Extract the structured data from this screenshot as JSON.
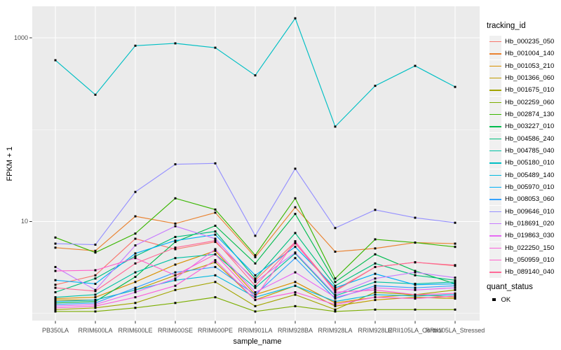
{
  "figure": {
    "background": "#FFFFFF",
    "panel_background": "#EBEBEB",
    "gridline_color": "#FFFFFF",
    "tick_label_color": "#4D4D4D",
    "marker_color": "#000000"
  },
  "chart_data": {
    "type": "line",
    "title": "",
    "xlabel": "sample_name",
    "ylabel": "FPKM + 1",
    "y_scale": "log10",
    "grid": "on",
    "legend_position": "right",
    "legend_title": "tracking_id",
    "y_ticks": [
      {
        "label": "1000",
        "value": 1000
      },
      {
        "label": "10",
        "value": 10
      }
    ],
    "y_minor_gridline_values": [
      1,
      100
    ],
    "ylim": [
      0.84,
      2160
    ],
    "categories": [
      "PB350LA",
      "RRIM600LA",
      "RRIM600LE",
      "RRIM600SE",
      "RRIM600PE",
      "RRIM901LA",
      "RRIM928BA",
      "RRIM928LA",
      "RRIM928LE",
      "RRII105LA_Control",
      "RRII105LA_Stressed"
    ],
    "point_marker": "black-square",
    "series": [
      {
        "name": "Hb_000235_050",
        "color": "#F8766D",
        "values": [
          2.05,
          2.6,
          6.5,
          5.0,
          6.0,
          2.3,
          6.0,
          1.8,
          3.2,
          3.6,
          3.3
        ]
      },
      {
        "name": "Hb_001004_140",
        "color": "#EA8331",
        "values": [
          5.2,
          4.8,
          11.4,
          9.5,
          12.5,
          4.1,
          14.3,
          4.7,
          5.1,
          5.9,
          5.75
        ]
      },
      {
        "name": "Hb_001053_210",
        "color": "#D89000",
        "values": [
          1.45,
          1.5,
          2.2,
          3.4,
          4.8,
          1.6,
          2.2,
          1.3,
          1.5,
          1.6,
          1.5
        ]
      },
      {
        "name": "Hb_001366_060",
        "color": "#C09B00",
        "values": [
          1.4,
          1.4,
          1.8,
          2.6,
          3.6,
          1.4,
          2.0,
          1.2,
          1.4,
          1.5,
          1.45
        ]
      },
      {
        "name": "Hb_001675_010",
        "color": "#A3A500",
        "values": [
          1.1,
          1.15,
          1.3,
          1.8,
          2.2,
          1.2,
          1.6,
          1.1,
          1.7,
          1.6,
          1.8
        ]
      },
      {
        "name": "Hb_002259_060",
        "color": "#7CAE00",
        "values": [
          1.05,
          1.05,
          1.15,
          1.3,
          1.5,
          1.05,
          1.2,
          1.05,
          1.1,
          1.1,
          1.1
        ]
      },
      {
        "name": "Hb_002874_130",
        "color": "#39B600",
        "values": [
          6.7,
          4.6,
          7.4,
          17.9,
          13.5,
          4.3,
          17.9,
          2.4,
          6.4,
          5.9,
          5.3
        ]
      },
      {
        "name": "Hb_003227_010",
        "color": "#00BB4E",
        "values": [
          1.3,
          1.35,
          2.5,
          6.0,
          9.0,
          3.5,
          12.1,
          2.2,
          4.4,
          2.9,
          2.1
        ]
      },
      {
        "name": "Hb_004586_240",
        "color": "#00BF7D",
        "values": [
          1.7,
          2.4,
          4.2,
          6.8,
          7.8,
          2.4,
          7.5,
          2.0,
          3.5,
          2.6,
          2.3
        ]
      },
      {
        "name": "Hb_004785_040",
        "color": "#00C1A3",
        "values": [
          1.5,
          1.6,
          2.8,
          4.0,
          4.4,
          1.9,
          4.5,
          1.55,
          2.2,
          2.1,
          2.2
        ]
      },
      {
        "name": "Hb_005180_010",
        "color": "#00BFC4",
        "values": [
          570,
          240,
          820,
          870,
          780,
          390,
          1630,
          108,
          300,
          495,
          292
        ]
      },
      {
        "name": "Hb_005489_140",
        "color": "#00BAE0",
        "values": [
          1.35,
          1.4,
          1.8,
          2.3,
          2.6,
          1.5,
          2.0,
          1.35,
          1.6,
          1.55,
          1.6
        ]
      },
      {
        "name": "Hb_005970_010",
        "color": "#00B0F6",
        "values": [
          2.3,
          2.1,
          4.5,
          6.2,
          7.2,
          2.6,
          5.3,
          1.9,
          2.7,
          2.05,
          2.1
        ]
      },
      {
        "name": "Hb_008053_060",
        "color": "#35A2FF",
        "values": [
          1.25,
          1.3,
          1.9,
          2.8,
          3.2,
          1.6,
          4.0,
          1.45,
          2.0,
          1.9,
          2.0
        ]
      },
      {
        "name": "Hb_009646_010",
        "color": "#9590FF",
        "values": [
          5.75,
          5.6,
          21.0,
          42.0,
          43.0,
          7.0,
          37.6,
          8.5,
          13.4,
          11.0,
          9.7
        ]
      },
      {
        "name": "Hb_018691_020",
        "color": "#C77CFF",
        "values": [
          3.2,
          1.8,
          5.5,
          8.9,
          6.5,
          2.2,
          4.6,
          1.6,
          2.4,
          2.8,
          2.45
        ]
      },
      {
        "name": "Hb_019863_030",
        "color": "#E76BF3",
        "values": [
          1.2,
          1.25,
          1.7,
          2.4,
          5.0,
          1.7,
          2.8,
          1.5,
          1.9,
          1.8,
          1.9
        ]
      },
      {
        "name": "Hb_022250_150",
        "color": "#FA62DB",
        "values": [
          1.15,
          1.2,
          1.5,
          2.0,
          3.8,
          1.4,
          1.7,
          1.25,
          1.5,
          1.45,
          1.55
        ]
      },
      {
        "name": "Hb_050959_010",
        "color": "#FF61CC",
        "values": [
          2.9,
          2.95,
          4.0,
          2.6,
          4.4,
          1.5,
          6.1,
          1.7,
          1.8,
          1.6,
          1.65
        ]
      },
      {
        "name": "Hb_089140_040",
        "color": "#FF6A98",
        "values": [
          1.9,
          1.75,
          3.5,
          5.2,
          6.2,
          2.0,
          5.8,
          1.75,
          3.2,
          3.6,
          3.35
        ]
      }
    ],
    "quant_legend": {
      "title": "quant_status",
      "items": [
        "OK"
      ],
      "marker_color": "#000000"
    }
  }
}
